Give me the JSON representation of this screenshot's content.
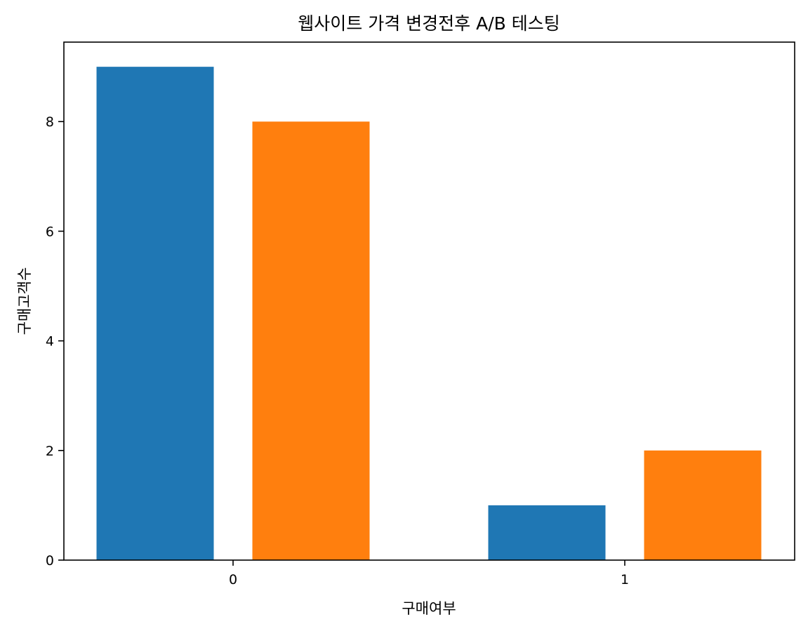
{
  "chart_data": {
    "type": "bar",
    "title": "웹사이트 가격 변경전후 A/B 테스팅",
    "xlabel": "구매여부",
    "ylabel": "구매고객수",
    "categories": [
      "0",
      "1"
    ],
    "series": [
      {
        "values": [
          9,
          1
        ],
        "color": "#1f77b4"
      },
      {
        "values": [
          8,
          2
        ],
        "color": "#ff7f0e"
      }
    ],
    "ylim": [
      0,
      9.45
    ],
    "yticks": [
      "0",
      "2",
      "4",
      "6",
      "8"
    ],
    "legend": false,
    "grid": false
  }
}
